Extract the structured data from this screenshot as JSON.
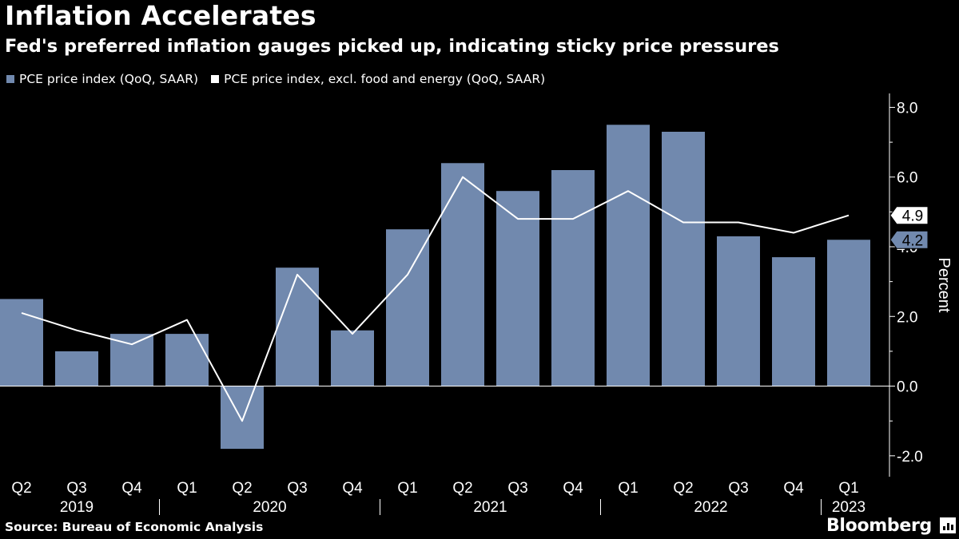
{
  "title": "Inflation Accelerates",
  "subtitle": "Fed's preferred inflation gauges picked up, indicating sticky price pressures",
  "source": "Source: Bureau of Economic Analysis",
  "brand": "Bloomberg",
  "colors": {
    "background": "#000000",
    "bar": "#7189ae",
    "line": "#ffffff",
    "text": "#ffffff",
    "axis": "#ffffff"
  },
  "chart_data": {
    "type": "bar",
    "title": "Inflation Accelerates",
    "ylabel": "Percent",
    "ylim": [
      -2.6,
      8.4
    ],
    "yticks": [
      -2.0,
      0.0,
      2.0,
      4.0,
      6.0,
      8.0
    ],
    "ytick_labels": [
      "-2.0",
      "0.0",
      "2.0",
      "4.0",
      "6.0",
      "8.0"
    ],
    "grid": false,
    "legend_position": "top-left",
    "categories": [
      "Q2",
      "Q3",
      "Q4",
      "Q1",
      "Q2",
      "Q3",
      "Q4",
      "Q1",
      "Q2",
      "Q3",
      "Q4",
      "Q1",
      "Q2",
      "Q3",
      "Q4",
      "Q1"
    ],
    "years": [
      {
        "label": "2019",
        "start": 0,
        "end": 2
      },
      {
        "label": "2020",
        "start": 3,
        "end": 6
      },
      {
        "label": "2021",
        "start": 7,
        "end": 10
      },
      {
        "label": "2022",
        "start": 11,
        "end": 14
      },
      {
        "label": "2023",
        "start": 15,
        "end": 15
      }
    ],
    "series": [
      {
        "name": "PCE price index (QoQ, SAAR)",
        "type": "bar",
        "color": "#7189ae",
        "values": [
          2.5,
          1.0,
          1.5,
          1.5,
          -1.8,
          3.4,
          1.6,
          4.5,
          6.4,
          5.6,
          6.2,
          7.5,
          7.3,
          4.3,
          3.7,
          4.2
        ],
        "last_label": "4.2"
      },
      {
        "name": "PCE price index, excl. food and energy (QoQ, SAAR)",
        "type": "line",
        "color": "#ffffff",
        "values": [
          2.1,
          1.6,
          1.2,
          1.9,
          -1.0,
          3.2,
          1.5,
          3.2,
          6.0,
          4.8,
          4.8,
          5.6,
          4.7,
          4.7,
          4.4,
          4.9
        ],
        "last_label": "4.9"
      }
    ]
  }
}
